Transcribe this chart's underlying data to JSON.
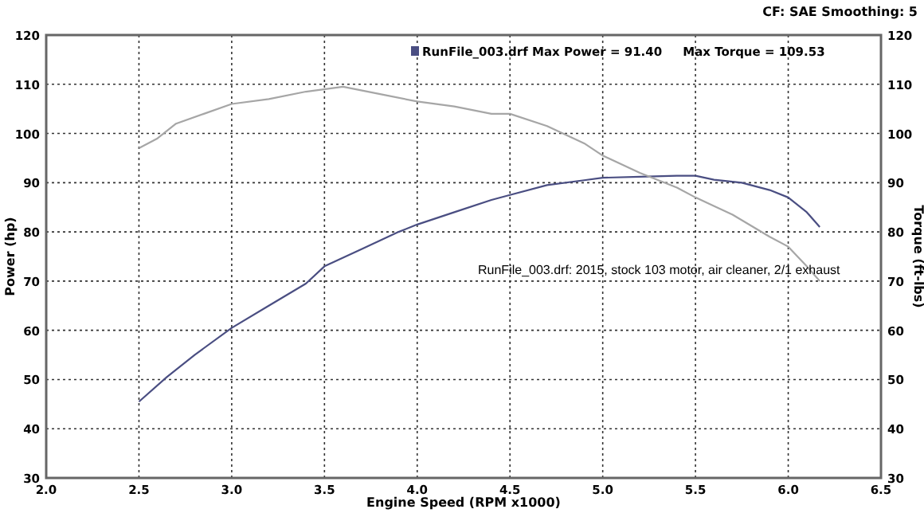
{
  "chart_data": {
    "type": "line",
    "subtitle": "CF: SAE Smoothing: 5",
    "xlabel": "Engine Speed (RPM x1000)",
    "ylabel": "Power (hp)",
    "y2label": "Torque (ft-lbs)",
    "annotations": [
      "RunFile_003.drf Max Power = 91.40     Max Torque = 109.53",
      "RunFile_003.drf: 2015, stock 103 motor, air cleaner, 2/1 exhaust"
    ],
    "series": [
      {
        "color": "#4a4e82",
        "x": [
          2.5,
          2.65,
          2.8,
          3.0,
          3.2,
          3.4,
          3.5,
          3.7,
          3.9,
          4.0,
          4.2,
          4.4,
          4.5,
          4.7,
          4.9,
          5.0,
          5.2,
          5.4,
          5.5,
          5.6,
          5.75,
          5.9,
          6.0,
          6.1,
          6.17
        ],
        "values": [
          45.5,
          50.5,
          55,
          60.5,
          65,
          69.5,
          73,
          76.5,
          80,
          81.5,
          84,
          86.5,
          87.5,
          89.5,
          90.5,
          91,
          91.2,
          91.4,
          91.4,
          90.6,
          90,
          88.5,
          87,
          84,
          81
        ]
      },
      {
        "color": "#a6a6a6",
        "axis": "y2",
        "x": [
          2.5,
          2.6,
          2.7,
          2.85,
          3.0,
          3.2,
          3.4,
          3.6,
          3.8,
          4.0,
          4.2,
          4.4,
          4.5,
          4.7,
          4.9,
          5.0,
          5.2,
          5.4,
          5.5,
          5.7,
          5.9,
          6.0,
          6.1,
          6.17
        ],
        "values": [
          97,
          99,
          102,
          104,
          106,
          107,
          108.5,
          109.5,
          108,
          106.5,
          105.5,
          104,
          104,
          101.5,
          98,
          95.5,
          92,
          89,
          87,
          83.5,
          79,
          77,
          73,
          70
        ]
      }
    ],
    "xlim": [
      2.0,
      6.5
    ],
    "xticks": [
      "2.0",
      2.5,
      "3.0",
      3.5,
      "4.0",
      4.5,
      "5.0",
      5.5,
      "6.0",
      6.5
    ],
    "ylim": [
      30,
      120
    ],
    "yticks": [
      30,
      40,
      50,
      60,
      70,
      80,
      90,
      100,
      110,
      120
    ],
    "y2lim": [
      30,
      120
    ],
    "y2ticks": [
      30,
      40,
      50,
      60,
      70,
      80,
      90,
      100,
      110,
      120
    ],
    "grid": true,
    "line_style": "solid",
    "marker": "none"
  }
}
